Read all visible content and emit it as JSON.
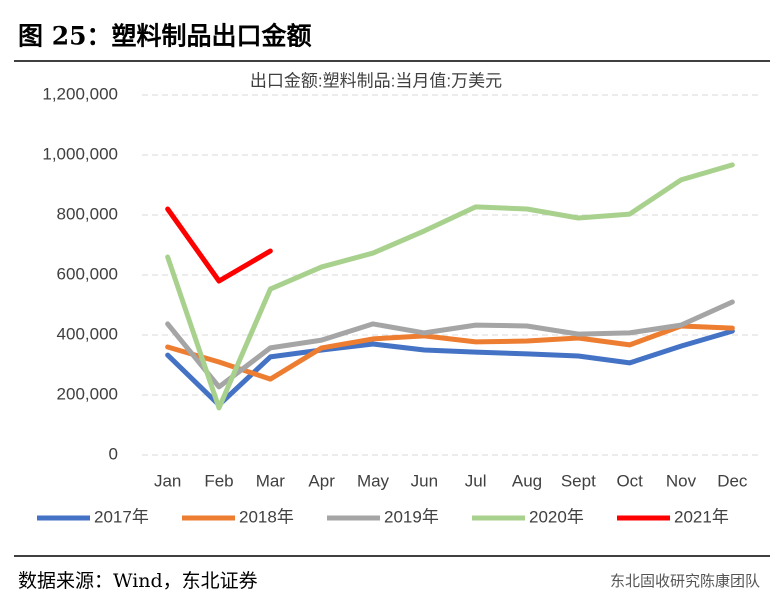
{
  "figure_title": "图 25：塑料制品出口金额",
  "source": "数据来源：Wind，东北证券",
  "watermark": "东北固收研究陈康团队",
  "chart_data": {
    "type": "line",
    "title": "出口金额:塑料制品:当月值:万美元",
    "categories": [
      "Jan",
      "Feb",
      "Mar",
      "Apr",
      "May",
      "Jun",
      "Jul",
      "Aug",
      "Sept",
      "Oct",
      "Nov",
      "Dec"
    ],
    "series": [
      {
        "name": "2017年",
        "color": "#4472c4",
        "values": [
          333000,
          167000,
          327000,
          350000,
          370000,
          350000,
          343000,
          337000,
          330000,
          307000,
          363000,
          413000
        ]
      },
      {
        "name": "2018年",
        "color": "#ed7d31",
        "values": [
          360000,
          310000,
          253000,
          357000,
          387000,
          397000,
          377000,
          380000,
          390000,
          367000,
          430000,
          423000
        ]
      },
      {
        "name": "2019年",
        "color": "#a5a5a5",
        "values": [
          437000,
          227000,
          357000,
          383000,
          437000,
          407000,
          433000,
          430000,
          403000,
          407000,
          433000,
          510000
        ]
      },
      {
        "name": "2020年",
        "color": "#a9d18e",
        "values": [
          660000,
          157000,
          553000,
          627000,
          673000,
          747000,
          827000,
          820000,
          790000,
          803000,
          917000,
          967000
        ]
      },
      {
        "name": "2021年",
        "color": "#ff0000",
        "values": [
          820000,
          580000,
          680000,
          null,
          null,
          null,
          null,
          null,
          null,
          null,
          null,
          null
        ]
      }
    ],
    "ylim": [
      0,
      1200000
    ],
    "yticks": [
      0,
      {
        "value": 200000,
        "label": "200,000"
      },
      {
        "value": 400000,
        "label": "400,000"
      },
      {
        "value": 600000,
        "label": "600,000"
      },
      {
        "value": 800000,
        "label": "800,000"
      },
      {
        "value": 1000000,
        "label": "1,000,000"
      },
      {
        "value": 1200000,
        "label": "1,200,000"
      }
    ],
    "grid": true,
    "legend": "bottom"
  }
}
